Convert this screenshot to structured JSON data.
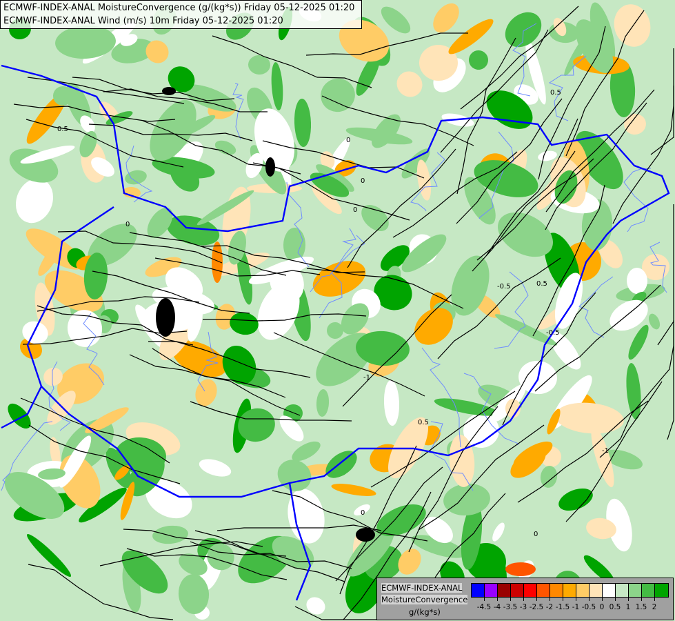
{
  "header": {
    "line1": "ECMWF-INDEX-ANAL MoistureConvergence (g/(kg*s)) Friday 05-12-2025 01:20",
    "line2": "ECMWF-INDEX-ANAL Wind (m/s) 10m Friday 05-12-2025 01:20"
  },
  "legend": {
    "model": "ECMWF-INDEX-ANAL",
    "parameter": "MoistureConvergence",
    "unit": "g/(kg*s)",
    "colors": [
      "#0000ff",
      "#9900ff",
      "#990000",
      "#cc0000",
      "#ff0000",
      "#ff5500",
      "#ff8800",
      "#ffaa00",
      "#ffcc66",
      "#ffe4b8",
      "#ffffff",
      "#c6e8c4",
      "#8cd48a",
      "#44bb44",
      "#00a400"
    ],
    "tick_labels": [
      "-4.5",
      "-4",
      "-3.5",
      "-3",
      "-2.5",
      "-2",
      "-1.5",
      "-1",
      "-0.5",
      "0",
      "0.5",
      "1",
      "1.5",
      "2"
    ]
  },
  "map": {
    "layers": [
      "moisture-convergence-fill",
      "wind-streamlines",
      "country-borders",
      "rivers"
    ],
    "contour_labels": [
      "0",
      "0.5",
      "-0.5",
      "-1",
      "0",
      "0.5",
      "0",
      "-0.5",
      "0",
      "0.5",
      "-1",
      "0",
      "0.5",
      "0"
    ],
    "colors": {
      "border": "#0000ff",
      "river": "#6f8cff",
      "streamline": "#000000"
    }
  }
}
